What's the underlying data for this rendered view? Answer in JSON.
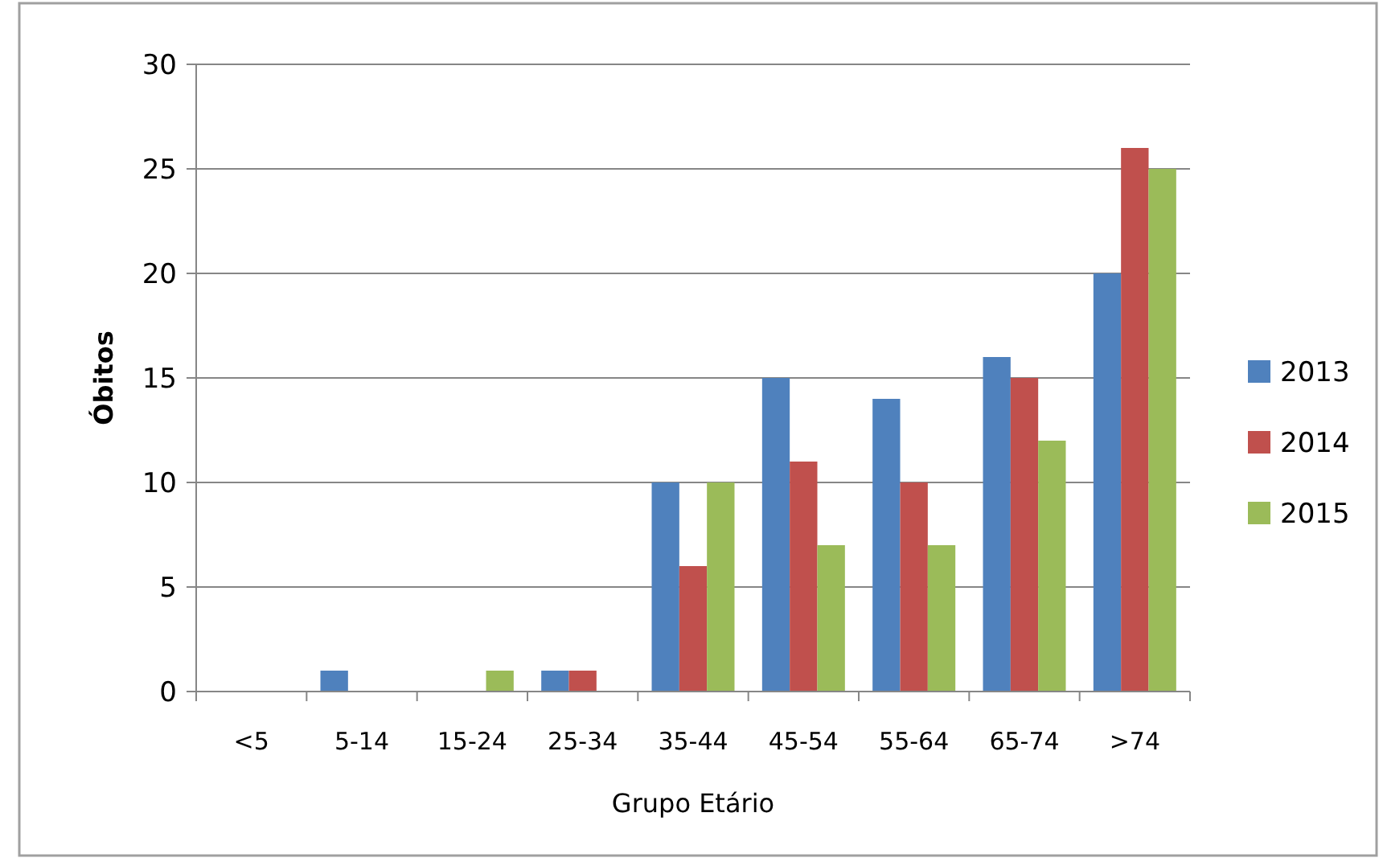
{
  "chart_data": {
    "type": "bar",
    "xlabel": "Grupo Etário",
    "ylabel": "Óbitos",
    "categories": [
      "<5",
      "5-14",
      "15-24",
      "25-34",
      "35-44",
      "45-54",
      "55-64",
      "65-74",
      ">74"
    ],
    "series": [
      {
        "name": "2013",
        "color": "#4f81bd",
        "values": [
          0,
          1,
          0,
          1,
          10,
          15,
          14,
          16,
          20
        ]
      },
      {
        "name": "2014",
        "color": "#c0504d",
        "values": [
          0,
          0,
          0,
          1,
          6,
          11,
          10,
          15,
          26
        ]
      },
      {
        "name": "2015",
        "color": "#9bbb59",
        "values": [
          0,
          0,
          1,
          0,
          10,
          7,
          7,
          12,
          25
        ]
      }
    ],
    "ylim": [
      0,
      30
    ],
    "yticks": [
      0,
      5,
      10,
      15,
      20,
      25,
      30
    ],
    "grid": "y",
    "legend": "right"
  }
}
